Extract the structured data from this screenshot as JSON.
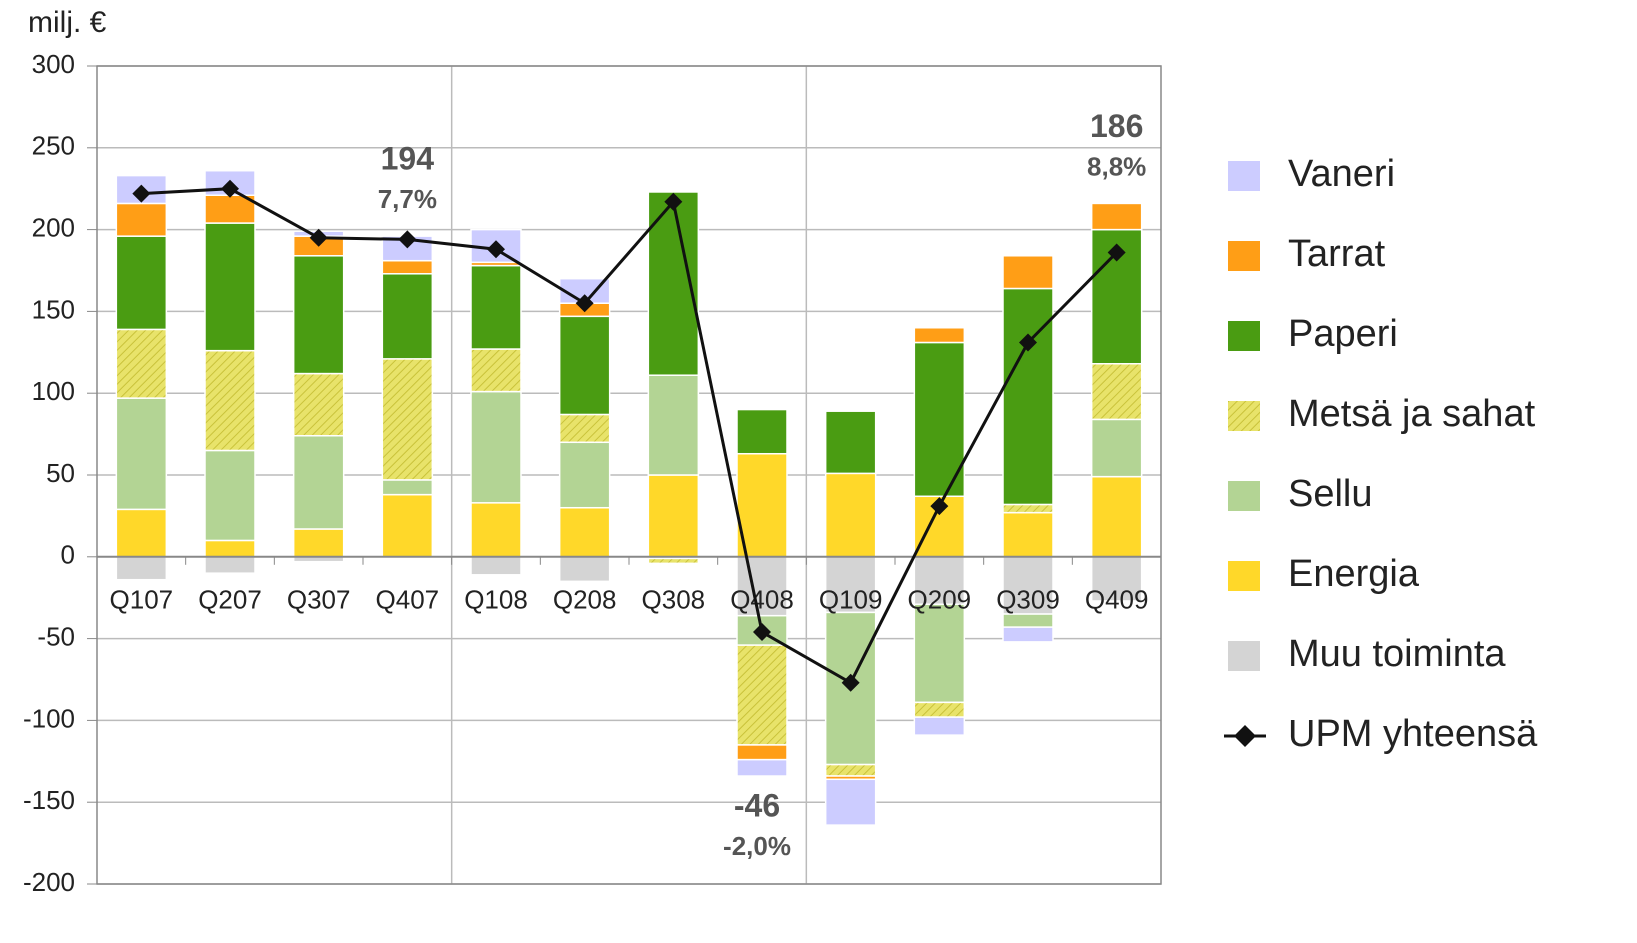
{
  "chart_data": {
    "type": "stacked-bar-line",
    "y_axis_label": "milj. €",
    "categories": [
      "Q107",
      "Q207",
      "Q307",
      "Q407",
      "Q108",
      "Q208",
      "Q308",
      "Q408",
      "Q109",
      "Q209",
      "Q309",
      "Q409"
    ],
    "ylim": [
      -200,
      300
    ],
    "yticks": [
      -200,
      -150,
      -100,
      -50,
      0,
      50,
      100,
      150,
      200,
      250,
      300
    ],
    "grid": true,
    "series": [
      {
        "name": "Muu toiminta",
        "color": "#d4d4d4",
        "values": [
          -14,
          -10,
          -3,
          0,
          -11,
          -15,
          -1,
          -36,
          -34,
          -29,
          -35,
          -27
        ]
      },
      {
        "name": "Energia",
        "color": "#ffd829",
        "values": [
          29,
          10,
          17,
          38,
          33,
          30,
          50,
          63,
          51,
          37,
          27,
          49
        ]
      },
      {
        "name": "Sellu",
        "color": "#b3d494",
        "values": [
          68,
          55,
          57,
          9,
          68,
          40,
          61,
          -18,
          -93,
          -60,
          -8,
          35
        ]
      },
      {
        "name": "Metsä ja sahat",
        "color": "#dede5a",
        "hatch": true,
        "values": [
          42,
          61,
          38,
          74,
          26,
          17,
          -3,
          -61,
          -7,
          -9,
          5,
          34
        ]
      },
      {
        "name": "Paperi",
        "color": "#4a9c12",
        "values": [
          57,
          78,
          72,
          52,
          51,
          60,
          112,
          27,
          38,
          94,
          132,
          82
        ]
      },
      {
        "name": "Tarrat",
        "color": "#ff9e16",
        "values": [
          20,
          17,
          12,
          8,
          2,
          8,
          0,
          -9,
          -2,
          9,
          20,
          16
        ]
      },
      {
        "name": "Vaneri",
        "color": "#ccccff",
        "values": [
          17,
          15,
          3,
          15,
          20,
          15,
          0,
          -10,
          -28,
          -11,
          -9,
          0
        ]
      }
    ],
    "line": {
      "name": "UPM yhteensä",
      "color": "#111111",
      "values": [
        222,
        225,
        195,
        194,
        188,
        155,
        217,
        -46,
        -77,
        31,
        131,
        186
      ]
    },
    "annotations": [
      {
        "category": "Q407",
        "text": "194",
        "sub": "7,7%",
        "position": "above"
      },
      {
        "category": "Q408",
        "text": "-46",
        "sub": "-2,0%",
        "position": "below"
      },
      {
        "category": "Q409",
        "text": "186",
        "sub": "8,8%",
        "position": "above"
      }
    ]
  }
}
